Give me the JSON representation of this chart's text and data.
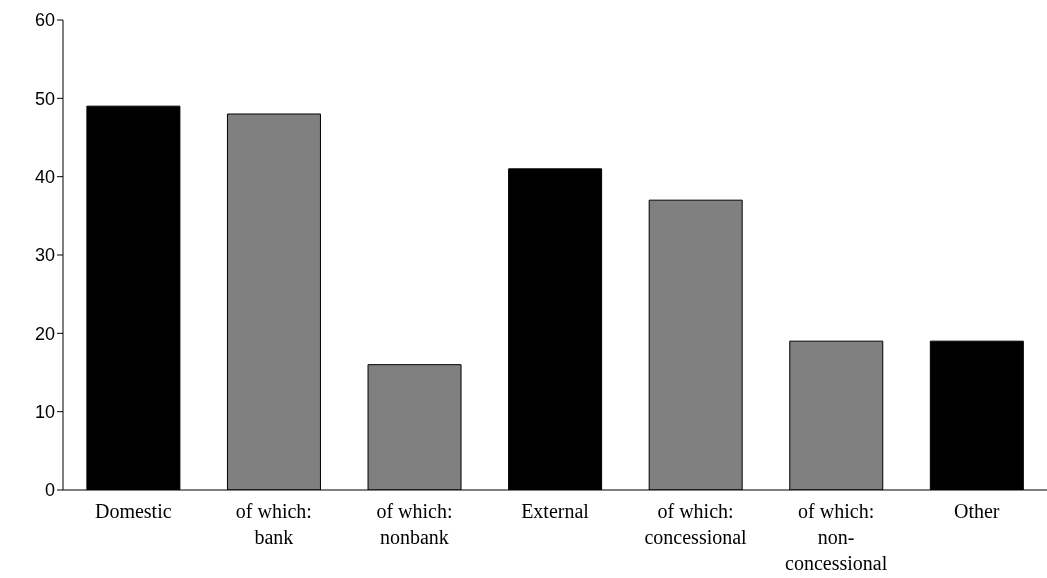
{
  "chart_data": {
    "type": "bar",
    "categories": [
      "Domestic",
      "of which: bank",
      "of which: nonbank",
      "External",
      "of which: concessional",
      "of which: non-concessional",
      "Other"
    ],
    "values": [
      49,
      48,
      16,
      41,
      37,
      19,
      19
    ],
    "colors": [
      "#000000",
      "#808080",
      "#808080",
      "#000000",
      "#808080",
      "#808080",
      "#000000"
    ],
    "ylim": [
      0,
      60
    ],
    "yticks": [
      0,
      10,
      20,
      30,
      40,
      50,
      60
    ],
    "grid": false
  }
}
